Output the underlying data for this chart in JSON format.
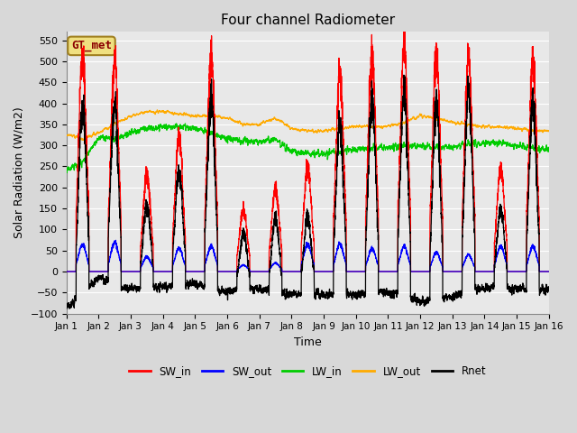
{
  "title": "Four channel Radiometer",
  "xlabel": "Time",
  "ylabel": "Solar Radiation (W/m2)",
  "ylim": [
    -100,
    570
  ],
  "yticks": [
    -100,
    -50,
    0,
    50,
    100,
    150,
    200,
    250,
    300,
    350,
    400,
    450,
    500,
    550
  ],
  "xlim": [
    0,
    15
  ],
  "xtick_labels": [
    "Jan 1",
    "Jan 2",
    "Jan 3",
    "Jan 4",
    "Jan 5",
    "Jan 6",
    "Jan 7",
    "Jan 8",
    "Jan 9",
    "Jan 10",
    "Jan 11",
    "Jan 12",
    "Jan 13",
    "Jan 14",
    "Jan 15",
    "Jan 16"
  ],
  "legend_labels": [
    "SW_in",
    "SW_out",
    "LW_in",
    "LW_out",
    "Rnet"
  ],
  "legend_colors": [
    "#ff0000",
    "#0000ff",
    "#00cc00",
    "#ffaa00",
    "#000000"
  ],
  "annotation_text": "GT_met",
  "annotation_color": "#8B0000",
  "fig_facecolor": "#d8d8d8",
  "ax_facecolor": "#e8e8e8",
  "grid_color": "#ffffff",
  "title_fontsize": 11,
  "sw_in_peaks": [
    520,
    505,
    230,
    320,
    510,
    145,
    195,
    250,
    465,
    515,
    540,
    510,
    510,
    245,
    500
  ],
  "sw_out_peaks": [
    65,
    70,
    35,
    55,
    60,
    15,
    20,
    65,
    65,
    55,
    60,
    45,
    40,
    60,
    60
  ],
  "lw_in_keypoints_x": [
    0,
    0.5,
    1.0,
    1.5,
    2.0,
    2.5,
    3.0,
    3.5,
    4.0,
    4.5,
    5.0,
    5.5,
    6.0,
    6.5,
    7.0,
    7.5,
    8.0,
    8.5,
    9.0,
    9.5,
    10.0,
    10.5,
    11.0,
    11.5,
    12.0,
    12.5,
    13.0,
    13.5,
    14.0,
    14.5,
    15.0
  ],
  "lw_in_keypoints_y": [
    240,
    260,
    320,
    315,
    330,
    340,
    345,
    345,
    340,
    330,
    315,
    310,
    310,
    315,
    285,
    280,
    280,
    285,
    290,
    295,
    295,
    300,
    300,
    295,
    295,
    305,
    305,
    305,
    300,
    295,
    290
  ],
  "lw_out_keypoints_x": [
    0,
    0.5,
    1.0,
    1.5,
    2.0,
    2.5,
    3.0,
    3.5,
    4.0,
    4.5,
    5.0,
    5.5,
    6.0,
    6.5,
    7.0,
    7.5,
    8.0,
    8.5,
    9.0,
    9.5,
    10.0,
    10.5,
    11.0,
    11.5,
    12.0,
    12.5,
    13.0,
    13.5,
    14.0,
    14.5,
    15.0
  ],
  "lw_out_keypoints_y": [
    325,
    315,
    330,
    350,
    370,
    380,
    380,
    375,
    370,
    370,
    365,
    350,
    350,
    365,
    340,
    335,
    335,
    340,
    345,
    345,
    345,
    355,
    370,
    365,
    355,
    350,
    345,
    345,
    340,
    335,
    335
  ],
  "rnet_night_base": -30,
  "n_per_day": 288
}
